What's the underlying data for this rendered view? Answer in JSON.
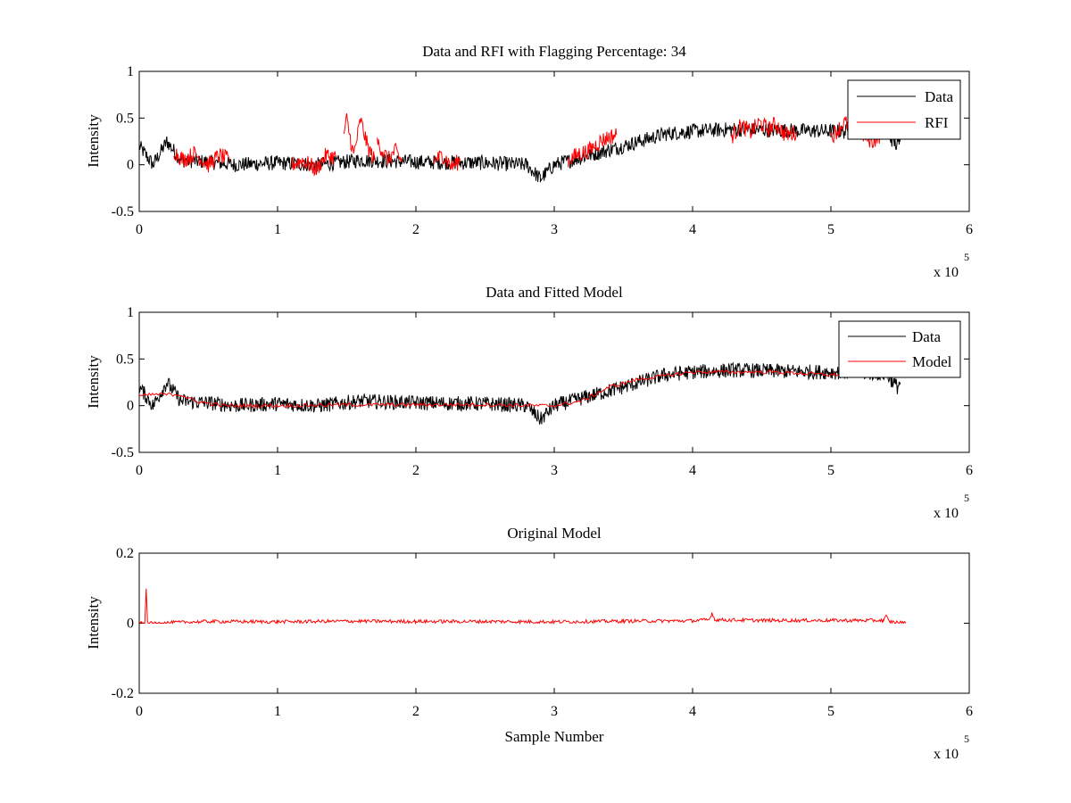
{
  "chart_data": [
    {
      "type": "line",
      "title": "Data and RFI with Flagging Percentage: 34",
      "xlabel": "",
      "ylabel": "Intensity",
      "xlim": [
        0,
        600000
      ],
      "ylim": [
        -0.5,
        1
      ],
      "xticks": [
        "0",
        "1",
        "2",
        "3",
        "4",
        "5",
        "6"
      ],
      "yticks": [
        "-0.5",
        "0",
        "0.5",
        "1"
      ],
      "x_multiplier": "x 10",
      "x_exponent": "5",
      "legend": "top-right",
      "series": [
        {
          "name": "Data",
          "color": "#000000",
          "x": [
            0,
            10000,
            20000,
            30000,
            50000,
            70000,
            100000,
            130000,
            160000,
            200000,
            250000,
            280000,
            290000,
            300000,
            320000,
            350000,
            380000,
            400000,
            430000,
            460000,
            500000,
            540000,
            548000,
            550000
          ],
          "y": [
            0.2,
            0.0,
            0.25,
            0.05,
            0.03,
            0.0,
            0.02,
            0.0,
            0.05,
            0.03,
            0.02,
            0.0,
            -0.15,
            0.0,
            0.08,
            0.2,
            0.33,
            0.36,
            0.38,
            0.37,
            0.36,
            0.34,
            0.2,
            0.25
          ]
        },
        {
          "name": "RFI",
          "color": "#ff0000",
          "segments": [
            {
              "x": [
                25000,
                32000,
                40000,
                50000,
                58000,
                65000
              ],
              "y": [
                0.15,
                0.05,
                0.12,
                0.0,
                0.1,
                0.05
              ]
            },
            {
              "x": [
                110000,
                118000,
                128000,
                135000,
                142000
              ],
              "y": [
                0.0,
                0.05,
                -0.05,
                0.1,
                0.08
              ]
            },
            {
              "x": [
                148000,
                150000,
                155000,
                160000,
                165000,
                170000
              ],
              "y": [
                0.35,
                0.48,
                0.1,
                0.48,
                0.2,
                0.05
              ]
            },
            {
              "x": [
                172000,
                180000,
                185000,
                190000
              ],
              "y": [
                0.25,
                0.05,
                0.15,
                0.03
              ]
            },
            {
              "x": [
                213000,
                220000,
                226000,
                232000
              ],
              "y": [
                0.05,
                0.1,
                -0.02,
                0.05
              ]
            },
            {
              "x": [
                310000,
                318000,
                325000,
                333000,
                340000,
                345000
              ],
              "y": [
                0.05,
                0.12,
                0.15,
                0.25,
                0.3,
                0.32
              ]
            },
            {
              "x": [
                428000,
                435000,
                442000,
                448000,
                455000,
                460000,
                467000,
                475000
              ],
              "y": [
                0.3,
                0.42,
                0.35,
                0.45,
                0.38,
                0.44,
                0.32,
                0.35
              ]
            },
            {
              "x": [
                500000,
                510000,
                520000,
                530000,
                540000
              ],
              "y": [
                0.3,
                0.45,
                0.35,
                0.25,
                0.38
              ]
            }
          ]
        }
      ]
    },
    {
      "type": "line",
      "title": "Data and Fitted Model",
      "xlabel": "",
      "ylabel": "Intensity",
      "xlim": [
        0,
        600000
      ],
      "ylim": [
        -0.5,
        1
      ],
      "xticks": [
        "0",
        "1",
        "2",
        "3",
        "4",
        "5",
        "6"
      ],
      "yticks": [
        "-0.5",
        "0",
        "0.5",
        "1"
      ],
      "x_multiplier": "x 10",
      "x_exponent": "5",
      "legend": "top-right",
      "series": [
        {
          "name": "Data",
          "color": "#000000",
          "x": [
            0,
            10000,
            20000,
            30000,
            50000,
            70000,
            100000,
            130000,
            160000,
            200000,
            250000,
            280000,
            290000,
            300000,
            320000,
            350000,
            380000,
            400000,
            430000,
            460000,
            500000,
            540000,
            548000,
            550000
          ],
          "y": [
            0.2,
            0.0,
            0.25,
            0.05,
            0.03,
            0.0,
            0.02,
            0.0,
            0.05,
            0.03,
            0.02,
            0.0,
            -0.15,
            0.0,
            0.08,
            0.2,
            0.33,
            0.36,
            0.38,
            0.37,
            0.36,
            0.34,
            0.2,
            0.25
          ]
        },
        {
          "name": "Model",
          "color": "#ff0000",
          "x": [
            0,
            10000,
            30000,
            40000,
            60000,
            100000,
            150000,
            200000,
            250000,
            290000,
            300000,
            320000,
            340000,
            360000,
            380000,
            400000,
            430000,
            460000,
            500000,
            520000
          ],
          "y": [
            0.1,
            0.12,
            0.12,
            0.05,
            0.0,
            0.0,
            0.01,
            0.01,
            0.01,
            0.0,
            0.0,
            0.05,
            0.2,
            0.28,
            0.32,
            0.36,
            0.36,
            0.36,
            0.33,
            0.34
          ]
        }
      ]
    },
    {
      "type": "line",
      "title": "Original Model",
      "xlabel": "Sample Number",
      "ylabel": "Intensity",
      "xlim": [
        0,
        600000
      ],
      "ylim": [
        -0.2,
        0.2
      ],
      "xticks": [
        "0",
        "1",
        "2",
        "3",
        "4",
        "5",
        "6"
      ],
      "yticks": [
        "-0.2",
        "0",
        "0.2"
      ],
      "x_multiplier": "x 10",
      "x_exponent": "5",
      "series": [
        {
          "color": "#ff0000",
          "x": [
            0,
            4000,
            5000,
            6000,
            8000,
            50000,
            100000,
            150000,
            200000,
            250000,
            300000,
            350000,
            400000,
            412000,
            414000,
            416000,
            450000,
            500000,
            538000,
            540000,
            542000,
            554000
          ],
          "y": [
            0.0,
            0.0,
            0.1,
            0.0,
            0.0,
            0.005,
            0.004,
            0.006,
            0.005,
            0.005,
            0.004,
            0.006,
            0.007,
            0.01,
            0.03,
            0.01,
            0.008,
            0.008,
            0.008,
            0.02,
            0.005,
            0.0
          ]
        }
      ]
    }
  ]
}
